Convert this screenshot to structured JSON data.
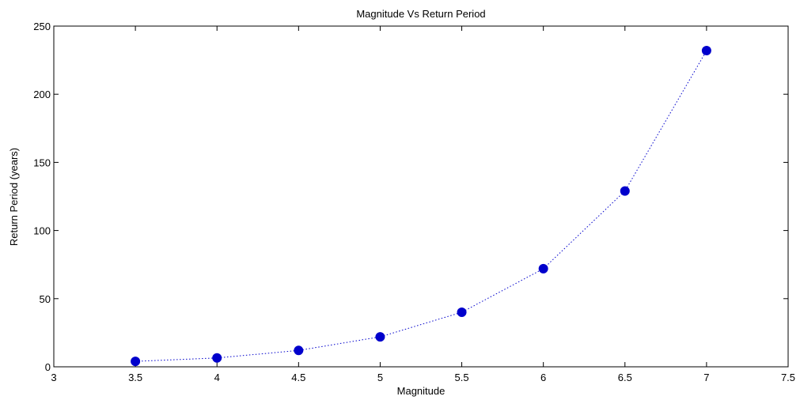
{
  "chart_data": {
    "type": "line",
    "title": "Magnitude Vs Return Period",
    "xlabel": "Magnitude",
    "ylabel": "Return Period  (years)",
    "xlim": [
      3,
      7.5
    ],
    "ylim": [
      0,
      250
    ],
    "xticks": [
      3,
      3.5,
      4,
      4.5,
      5,
      5.5,
      6,
      6.5,
      7,
      7.5
    ],
    "xtick_labels": [
      "3",
      "3.5",
      "4",
      "4.5",
      "5",
      "5.5",
      "6",
      "6.5",
      "7",
      "7.5"
    ],
    "yticks": [
      0,
      50,
      100,
      150,
      200,
      250
    ],
    "ytick_labels": [
      "0",
      "50",
      "100",
      "150",
      "200",
      "250"
    ],
    "grid": false,
    "series": [
      {
        "line_style": "dotted",
        "marker": "circle",
        "color": "#0000cc",
        "x": [
          3.5,
          4,
          4.5,
          5,
          5.5,
          6,
          6.5,
          7
        ],
        "y": [
          4,
          6.5,
          12,
          22,
          40,
          72,
          129,
          232
        ]
      }
    ]
  }
}
